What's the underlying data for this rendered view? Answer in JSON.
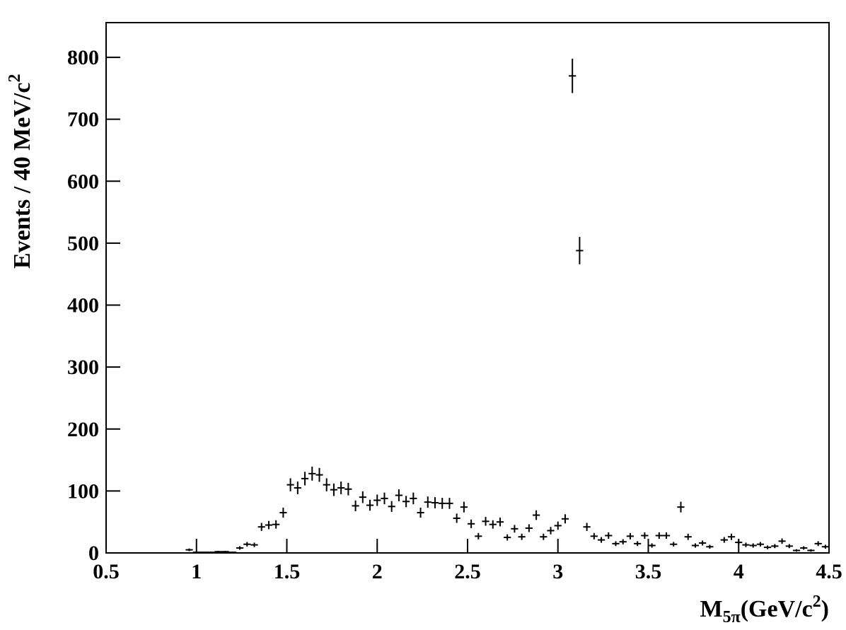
{
  "chart_data": {
    "type": "histogram",
    "ylabel": [
      "Events / 40 MeV/c",
      "2"
    ],
    "xlabel": [
      "M",
      "5π",
      "(GeV/c",
      "2",
      ")"
    ],
    "xlim": [
      0.5,
      4.5
    ],
    "ylim": [
      0,
      856
    ],
    "xticks": [
      0.5,
      1,
      1.5,
      2,
      2.5,
      3,
      3.5,
      4,
      4.5
    ],
    "yticks": [
      0,
      100,
      200,
      300,
      400,
      500,
      600,
      700,
      800
    ],
    "color": "#000000",
    "bins": [
      0.5,
      0.54,
      0.58,
      0.62,
      0.66,
      0.7,
      0.74,
      0.78,
      0.82,
      0.86,
      0.9,
      0.94,
      0.98,
      1.02,
      1.06,
      1.1,
      1.14,
      1.18,
      1.22,
      1.26,
      1.3,
      1.34,
      1.38,
      1.42,
      1.46,
      1.5,
      1.54,
      1.58,
      1.62,
      1.66,
      1.7,
      1.74,
      1.78,
      1.82,
      1.86,
      1.9,
      1.94,
      1.98,
      2.02,
      2.06,
      2.1,
      2.14,
      2.18,
      2.22,
      2.26,
      2.3,
      2.34,
      2.38,
      2.42,
      2.46,
      2.5,
      2.54,
      2.58,
      2.62,
      2.66,
      2.7,
      2.74,
      2.78,
      2.82,
      2.86,
      2.9,
      2.94,
      2.98,
      3.02,
      3.06,
      3.1,
      3.14,
      3.18,
      3.22,
      3.26,
      3.3,
      3.34,
      3.38,
      3.42,
      3.46,
      3.5,
      3.54,
      3.58,
      3.62,
      3.66,
      3.7,
      3.74,
      3.78,
      3.82,
      3.86,
      3.9,
      3.94,
      3.98,
      4.02,
      4.06,
      4.1,
      4.14,
      4.18,
      4.22,
      4.26,
      4.3,
      4.34,
      4.38,
      4.42,
      4.46,
      4.5
    ],
    "values": [
      0,
      0,
      0,
      0,
      0,
      0,
      0,
      0,
      0,
      0,
      0,
      5,
      1,
      1,
      1,
      2,
      2,
      1,
      8,
      14,
      13,
      42,
      45,
      46,
      65,
      110,
      105,
      120,
      128,
      126,
      110,
      102,
      105,
      103,
      76,
      90,
      77,
      85,
      88,
      75,
      93,
      83,
      88,
      65,
      82,
      81,
      80,
      80,
      56,
      74,
      47,
      27,
      51,
      46,
      50,
      25,
      39,
      26,
      40,
      61,
      26,
      36,
      44,
      55,
      770,
      488,
      42,
      27,
      21,
      28,
      15,
      18,
      27,
      15,
      28,
      12,
      28,
      28,
      14,
      74,
      26,
      12,
      16,
      10,
      0,
      21,
      26,
      17,
      13,
      12,
      14,
      9,
      11,
      19,
      11,
      4,
      8,
      4,
      15,
      10
    ],
    "errors": [
      0,
      0,
      0,
      0,
      0,
      0,
      0,
      0,
      0,
      0,
      0,
      2.2,
      1,
      1,
      1,
      1.4,
      1.4,
      1,
      2.8,
      3.7,
      3.6,
      6.5,
      6.7,
      6.8,
      8.1,
      10.5,
      10.2,
      11,
      11.3,
      11.2,
      10.5,
      10.1,
      10.2,
      10.1,
      8.7,
      9.5,
      8.8,
      9.2,
      9.4,
      8.7,
      9.6,
      9.1,
      9.4,
      8.1,
      9.1,
      9,
      8.9,
      8.9,
      7.5,
      8.6,
      6.9,
      5.2,
      7.1,
      6.8,
      7.1,
      5,
      6.2,
      5.1,
      6.3,
      7.8,
      5.1,
      6,
      6.6,
      7.4,
      27.7,
      22.1,
      6.5,
      5.2,
      4.6,
      5.3,
      3.9,
      4.2,
      5.2,
      3.9,
      5.3,
      3.5,
      5.3,
      5.3,
      3.7,
      8.6,
      5.1,
      3.5,
      4,
      3.2,
      0,
      4.6,
      5.1,
      4.1,
      3.6,
      3.5,
      3.7,
      3,
      3.3,
      4.4,
      3.3,
      2,
      2.8,
      2,
      3.9,
      3.2
    ]
  }
}
